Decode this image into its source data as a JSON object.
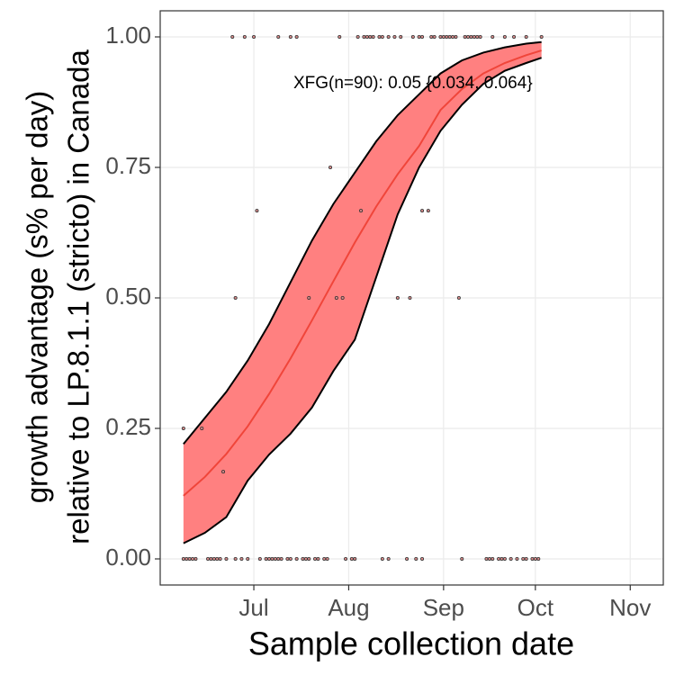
{
  "chart_data": {
    "type": "scatter",
    "annotation": "XFG(n=90): 0.05 {0.034, 0.064}",
    "x_label": "Sample collection date",
    "y_label": [
      "growth advantage (s% per day)",
      "relative to LP.8.1.1 (stricto) in Canada"
    ],
    "xlim": [
      -30.6,
      133.8
    ],
    "ylim": [
      -0.05,
      1.05
    ],
    "xticks": [
      {
        "value": 0,
        "label": "Jul"
      },
      {
        "value": 31,
        "label": "Aug"
      },
      {
        "value": 62,
        "label": "Sep"
      },
      {
        "value": 92,
        "label": "Oct"
      },
      {
        "value": 123,
        "label": "Nov"
      }
    ],
    "yticks": [
      {
        "value": 0,
        "label": "0.00"
      },
      {
        "value": 0.25,
        "label": "0.25"
      },
      {
        "value": 0.5,
        "label": "0.50"
      },
      {
        "value": 0.75,
        "label": "0.75"
      },
      {
        "value": 1,
        "label": "1.00"
      }
    ],
    "grid": true,
    "fit": {
      "color": "#f0453a",
      "band_color": "#ff8080",
      "x": [
        -23,
        -16,
        -9,
        -2,
        5,
        12,
        19,
        26,
        33,
        40,
        47,
        54,
        61,
        68,
        75,
        82,
        89,
        94
      ],
      "values": [
        0.121,
        0.157,
        0.201,
        0.254,
        0.316,
        0.384,
        0.457,
        0.532,
        0.606,
        0.675,
        0.737,
        0.791,
        0.86,
        0.9,
        0.93,
        0.95,
        0.965,
        0.974
      ],
      "lower": [
        0.03,
        0.05,
        0.08,
        0.15,
        0.2,
        0.24,
        0.29,
        0.36,
        0.42,
        0.54,
        0.66,
        0.75,
        0.82,
        0.87,
        0.91,
        0.935,
        0.95,
        0.96
      ],
      "upper": [
        0.22,
        0.27,
        0.32,
        0.38,
        0.45,
        0.53,
        0.61,
        0.68,
        0.74,
        0.8,
        0.85,
        0.89,
        0.93,
        0.955,
        0.97,
        0.98,
        0.987,
        0.99
      ]
    },
    "points": {
      "color": "#d88a8a",
      "x": [
        -7,
        -3,
        0,
        8,
        12,
        14,
        28,
        34,
        36,
        37,
        38,
        39,
        41,
        42,
        44,
        46,
        48,
        52,
        54,
        55,
        58,
        59,
        61,
        62,
        63,
        64,
        65,
        66,
        69,
        70,
        71,
        72,
        73,
        74,
        78,
        82,
        85,
        89,
        94,
        -23,
        -22,
        -21,
        -20,
        -19,
        -15,
        -14,
        -13,
        -12,
        -11,
        -9,
        -6,
        -4,
        -2,
        2,
        4,
        5,
        6,
        7,
        8,
        9,
        11,
        12,
        14,
        16,
        17,
        18,
        20,
        21,
        23,
        24,
        30,
        32,
        33,
        42,
        44,
        50,
        53,
        55,
        68,
        76,
        77,
        78,
        80,
        81,
        82,
        84,
        86,
        88,
        89,
        91,
        92,
        93,
        -23,
        -17,
        -10,
        1,
        -6,
        18,
        25,
        27,
        29,
        35,
        47,
        51,
        55,
        57,
        67
      ],
      "values": [
        1,
        1,
        1,
        1,
        1,
        1,
        1,
        1,
        1,
        1,
        1,
        1,
        1,
        1,
        1,
        1,
        1,
        1,
        1,
        1,
        1,
        1,
        1,
        1,
        1,
        1,
        1,
        1,
        1,
        1,
        1,
        1,
        1,
        1,
        1,
        1,
        1,
        1,
        1,
        0,
        0,
        0,
        0,
        0,
        0,
        0,
        0,
        0,
        0,
        0,
        0,
        0,
        0,
        0,
        0,
        0,
        0,
        0,
        0,
        0,
        0,
        0,
        0,
        0,
        0,
        0,
        0,
        0,
        0,
        0,
        0,
        0,
        0,
        0,
        0,
        0,
        0,
        0,
        0,
        0,
        0,
        0,
        0,
        0,
        0,
        0,
        0,
        0,
        0,
        0,
        0,
        0,
        0.25,
        0.25,
        0.167,
        0.667,
        0.5,
        0.5,
        0.75,
        0.5,
        0.5,
        0.667,
        0.5,
        0.5,
        0.667,
        0.667,
        0.5
      ]
    }
  }
}
